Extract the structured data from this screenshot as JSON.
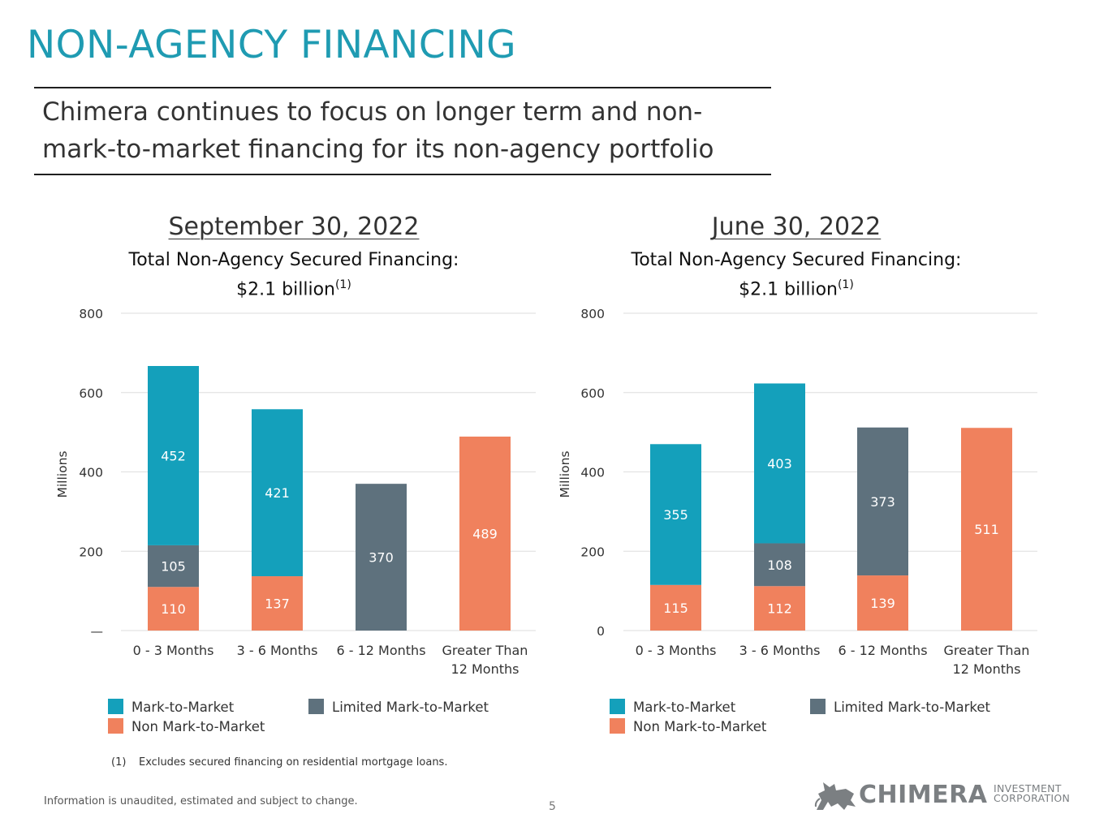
{
  "title": "NON-AGENCY FINANCING",
  "subtitle": "Chimera continues to focus on longer term and non-mark-to-market financing for its non-agency portfolio",
  "colors": {
    "title": "#1f9bb2",
    "mark_to_market": "#14a0bb",
    "limited_mark_to_market": "#5e717d",
    "non_mark_to_market": "#f0815d",
    "grid": "#dedede"
  },
  "panels": [
    {
      "date": "September 30, 2022",
      "financing_label": "Total Non-Agency Secured Financing:",
      "financing_value": "$2.1 billion",
      "financing_note": "(1)"
    },
    {
      "date": "June 30, 2022",
      "financing_label": "Total Non-Agency Secured Financing:",
      "financing_value": "$2.1 billion",
      "financing_note": "(1)"
    }
  ],
  "legend": {
    "mark_to_market": "Mark-to-Market",
    "limited_mark_to_market": "Limited Mark-to-Market",
    "non_mark_to_market": "Non Mark-to-Market"
  },
  "chart_data": [
    {
      "type": "bar",
      "stacked": true,
      "title": "September 30, 2022",
      "ylabel": "Millions",
      "ylim": [
        0,
        800
      ],
      "yticks": [
        0,
        200,
        400,
        600,
        800
      ],
      "ytick_labels": [
        "—",
        "200",
        "400",
        "600",
        "800"
      ],
      "categories": [
        "0 - 3 Months",
        "3 - 6 Months",
        "6 - 12 Months",
        "Greater Than 12 Months"
      ],
      "series": [
        {
          "name": "Non Mark-to-Market",
          "key": "non_mark_to_market",
          "values": [
            110,
            137,
            null,
            489
          ]
        },
        {
          "name": "Limited Mark-to-Market",
          "key": "limited_mark_to_market",
          "values": [
            105,
            null,
            370,
            null
          ]
        },
        {
          "name": "Mark-to-Market",
          "key": "mark_to_market",
          "values": [
            452,
            421,
            null,
            null
          ]
        }
      ]
    },
    {
      "type": "bar",
      "stacked": true,
      "title": "June 30, 2022",
      "ylabel": "Millions",
      "ylim": [
        0,
        800
      ],
      "yticks": [
        0,
        200,
        400,
        600,
        800
      ],
      "ytick_labels": [
        "0",
        "200",
        "400",
        "600",
        "800"
      ],
      "categories": [
        "0 - 3 Months",
        "3 - 6 Months",
        "6 - 12 Months",
        "Greater Than 12 Months"
      ],
      "series": [
        {
          "name": "Non Mark-to-Market",
          "key": "non_mark_to_market",
          "values": [
            115,
            112,
            139,
            511
          ]
        },
        {
          "name": "Limited Mark-to-Market",
          "key": "limited_mark_to_market",
          "values": [
            null,
            108,
            373,
            null
          ]
        },
        {
          "name": "Mark-to-Market",
          "key": "mark_to_market",
          "values": [
            355,
            403,
            null,
            null
          ]
        }
      ]
    }
  ],
  "footnote": {
    "number": "(1)",
    "text": "Excludes secured financing on residential mortgage loans."
  },
  "info": "Information is unaudited, estimated and subject to change.",
  "page_number": "5",
  "logo": {
    "word": "CHIMERA",
    "line1": "INVESTMENT",
    "line2": "CORPORATION"
  }
}
